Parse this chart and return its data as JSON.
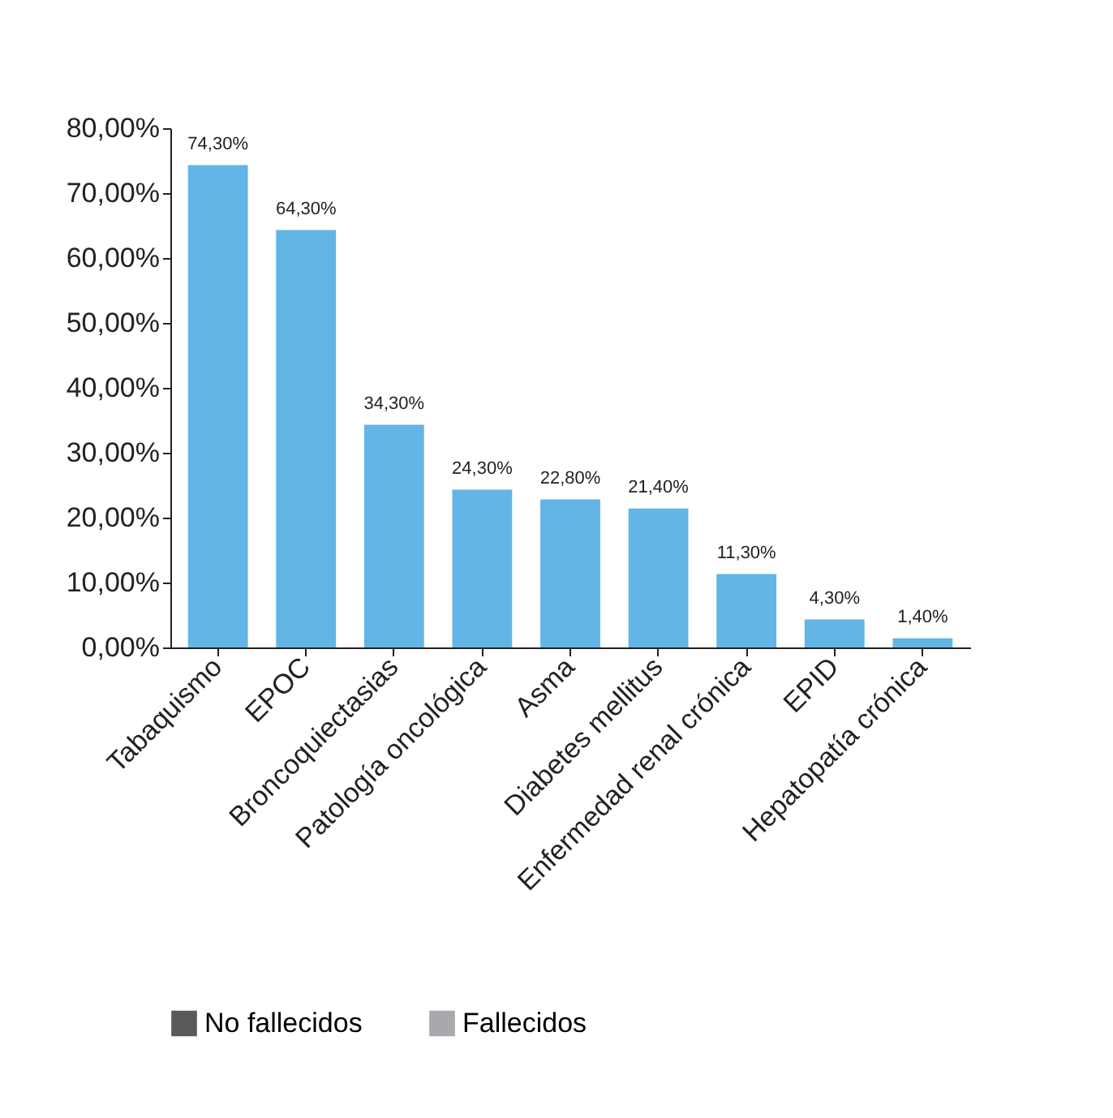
{
  "chart_data": {
    "type": "bar",
    "categories": [
      "Tabaquismo",
      "EPOC",
      "Broncoquiectasias",
      "Patología oncológica",
      "Asma",
      "Diabetes mellitus",
      "Enfermedad renal crónica",
      "EPID",
      "Hepatopatía crónica"
    ],
    "series": [
      {
        "color": "#63b5e5",
        "values": [
          74.3,
          64.3,
          34.3,
          24.3,
          22.8,
          21.4,
          11.3,
          4.3,
          1.4
        ],
        "value_labels": [
          "74,30%",
          "64,30%",
          "34,30%",
          "24,30%",
          "22,80%",
          "21,40%",
          "11,30%",
          "4,30%",
          "1,40%"
        ]
      },
      {
        "name": "No fallecidos",
        "color": "#58595b",
        "values": [
          null,
          null,
          null,
          null,
          null,
          null,
          null,
          null,
          null
        ]
      },
      {
        "name": "Fallecidos",
        "color": "#a7a9ac",
        "values": [
          null,
          null,
          null,
          null,
          null,
          null,
          null,
          null,
          null
        ]
      }
    ],
    "ylim": [
      0,
      80
    ],
    "yticks": [
      {
        "value": 0,
        "label": "0,00%"
      },
      {
        "value": 10,
        "label": "10,00%"
      },
      {
        "value": 20,
        "label": "20,00%"
      },
      {
        "value": 30,
        "label": "30,00%"
      },
      {
        "value": 40,
        "label": "40,00%"
      },
      {
        "value": 50,
        "label": "50,00%"
      },
      {
        "value": 60,
        "label": "60,00%"
      },
      {
        "value": 70,
        "label": "70,00%"
      },
      {
        "value": 80,
        "label": "80,00%"
      }
    ],
    "grid": false,
    "legend": "bottom"
  }
}
